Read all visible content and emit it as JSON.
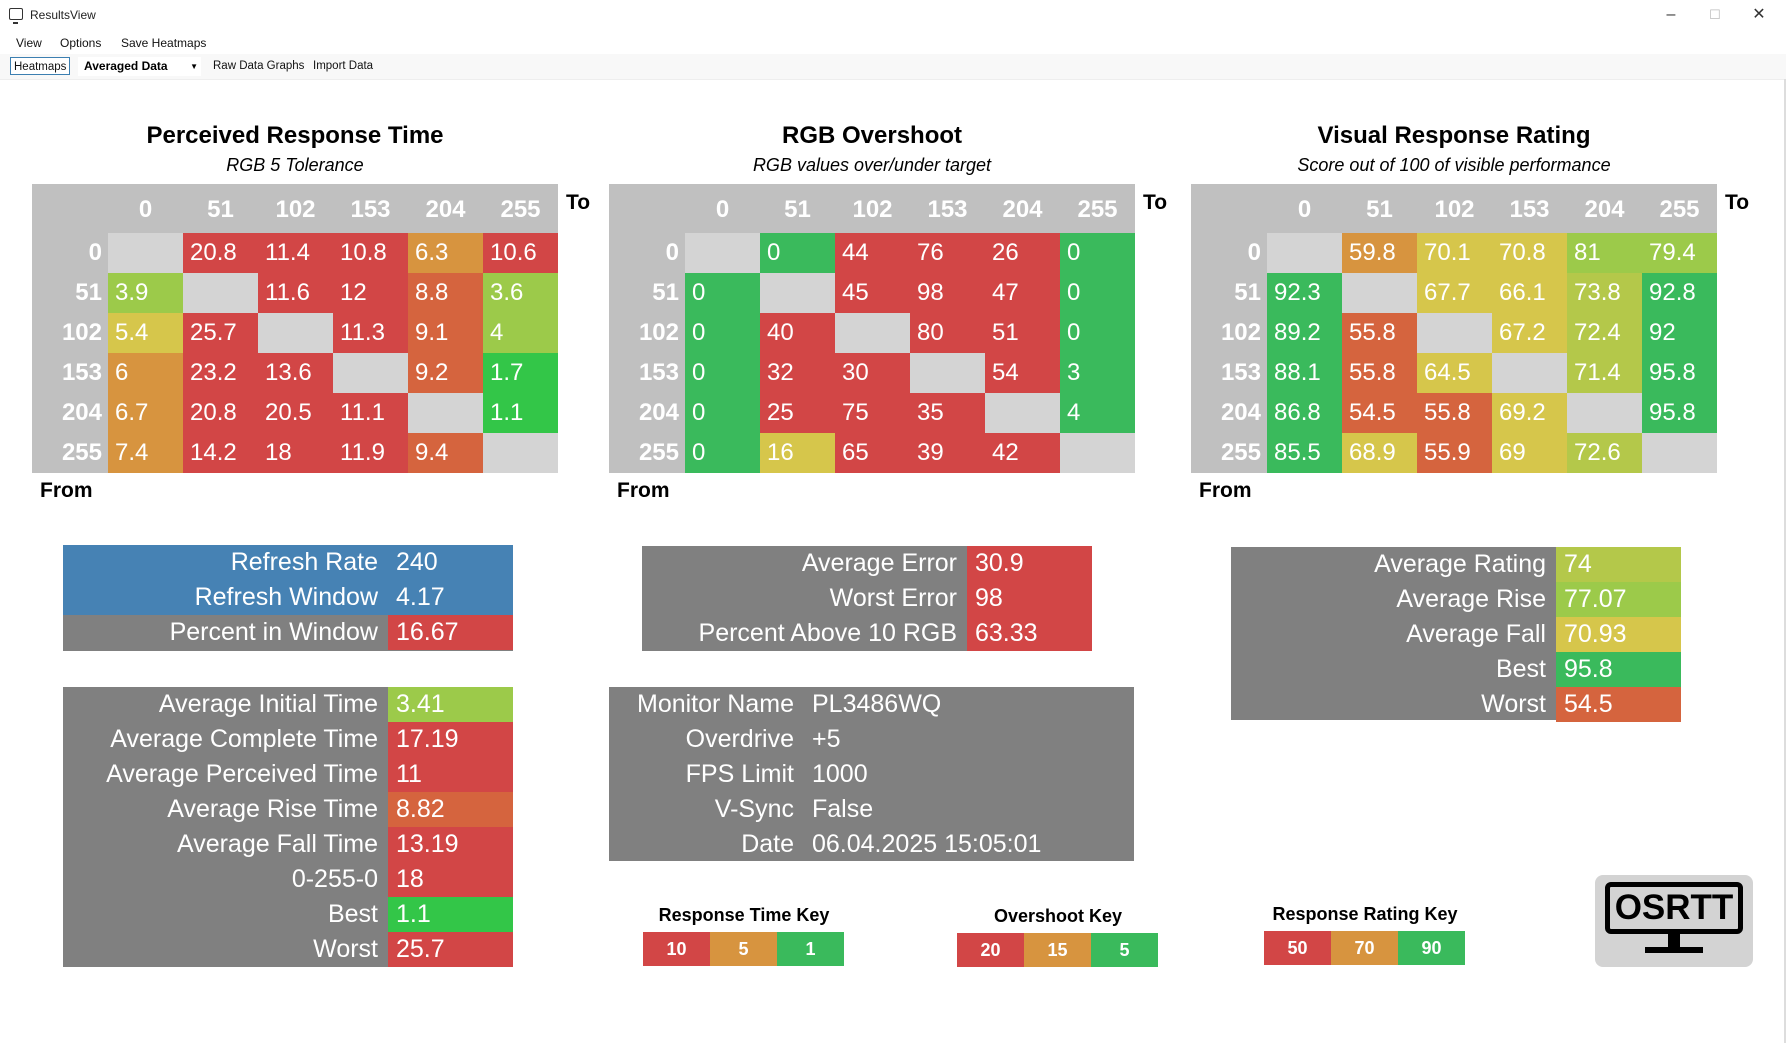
{
  "window": {
    "title": "ResultsView"
  },
  "menu": {
    "items": [
      "View",
      "Options",
      "Save Heatmaps"
    ]
  },
  "toolbar": {
    "heatmaps": "Heatmaps",
    "dropdown_value": "Averaged Data",
    "raw_graphs": "Raw Data Graphs",
    "import": "Import Data"
  },
  "colors": {
    "red": "#d24646",
    "orange_red": "#d5643e",
    "orange": "#d7943f",
    "yellow": "#d6c64b",
    "yellow_green": "#b4c84a",
    "lime": "#9cca4a",
    "green": "#3aba5c",
    "bright_green": "#33c648",
    "gray": "#808080",
    "header_gray": "#c0c0c0",
    "blue": "#4682b4"
  },
  "heatmaps": [
    {
      "title": "Perceived Response Time",
      "subtitle": "RGB 5 Tolerance",
      "cols": [
        "0",
        "51",
        "102",
        "153",
        "204",
        "255"
      ],
      "rows": [
        "0",
        "51",
        "102",
        "153",
        "204",
        "255"
      ],
      "to_label": "To",
      "from_label": "From",
      "cells": [
        [
          "",
          "20.8",
          "11.4",
          "10.8",
          "6.3",
          "10.6"
        ],
        [
          "3.9",
          "",
          "11.6",
          "12",
          "8.8",
          "3.6"
        ],
        [
          "5.4",
          "25.7",
          "",
          "11.3",
          "9.1",
          "4"
        ],
        [
          "6",
          "23.2",
          "13.6",
          "",
          "9.2",
          "1.7"
        ],
        [
          "6.7",
          "20.8",
          "20.5",
          "11.1",
          "",
          "1.1"
        ],
        [
          "7.4",
          "14.2",
          "18",
          "11.9",
          "9.4",
          ""
        ]
      ],
      "cell_colors": [
        [
          "",
          "red",
          "red",
          "red",
          "orange",
          "red"
        ],
        [
          "lime",
          "",
          "red",
          "red",
          "orange_red",
          "lime"
        ],
        [
          "yellow",
          "red",
          "",
          "red",
          "orange_red",
          "lime"
        ],
        [
          "orange",
          "red",
          "red",
          "",
          "orange_red",
          "bright_green"
        ],
        [
          "orange",
          "red",
          "red",
          "red",
          "",
          "bright_green"
        ],
        [
          "orange",
          "red",
          "red",
          "red",
          "orange_red",
          ""
        ]
      ]
    },
    {
      "title": "RGB Overshoot",
      "subtitle": "RGB values over/under target",
      "cols": [
        "0",
        "51",
        "102",
        "153",
        "204",
        "255"
      ],
      "rows": [
        "0",
        "51",
        "102",
        "153",
        "204",
        "255"
      ],
      "to_label": "To",
      "from_label": "From",
      "cells": [
        [
          "",
          "0",
          "44",
          "76",
          "26",
          "0"
        ],
        [
          "0",
          "",
          "45",
          "98",
          "47",
          "0"
        ],
        [
          "0",
          "40",
          "",
          "80",
          "51",
          "0"
        ],
        [
          "0",
          "32",
          "30",
          "",
          "54",
          "3"
        ],
        [
          "0",
          "25",
          "75",
          "35",
          "",
          "4"
        ],
        [
          "0",
          "16",
          "65",
          "39",
          "42",
          ""
        ]
      ],
      "cell_colors": [
        [
          "",
          "green",
          "red",
          "red",
          "red",
          "green"
        ],
        [
          "green",
          "",
          "red",
          "red",
          "red",
          "green"
        ],
        [
          "green",
          "red",
          "",
          "red",
          "red",
          "green"
        ],
        [
          "green",
          "red",
          "red",
          "",
          "red",
          "green"
        ],
        [
          "green",
          "red",
          "red",
          "red",
          "",
          "green"
        ],
        [
          "green",
          "yellow",
          "red",
          "red",
          "red",
          ""
        ]
      ]
    },
    {
      "title": "Visual Response Rating",
      "subtitle": "Score out of 100 of visible performance",
      "cols": [
        "0",
        "51",
        "102",
        "153",
        "204",
        "255"
      ],
      "rows": [
        "0",
        "51",
        "102",
        "153",
        "204",
        "255"
      ],
      "to_label": "To",
      "from_label": "From",
      "cells": [
        [
          "",
          "59.8",
          "70.1",
          "70.8",
          "81",
          "79.4"
        ],
        [
          "92.3",
          "",
          "67.7",
          "66.1",
          "73.8",
          "92.8"
        ],
        [
          "89.2",
          "55.8",
          "",
          "67.2",
          "72.4",
          "92"
        ],
        [
          "88.1",
          "55.8",
          "64.5",
          "",
          "71.4",
          "95.8"
        ],
        [
          "86.8",
          "54.5",
          "55.8",
          "69.2",
          "",
          "95.8"
        ],
        [
          "85.5",
          "68.9",
          "55.9",
          "69",
          "72.6",
          ""
        ]
      ],
      "cell_colors": [
        [
          "",
          "orange",
          "yellow",
          "yellow",
          "lime",
          "lime"
        ],
        [
          "green",
          "",
          "yellow",
          "yellow",
          "yellow_green",
          "green"
        ],
        [
          "green",
          "orange_red",
          "",
          "yellow",
          "yellow_green",
          "green"
        ],
        [
          "green",
          "orange_red",
          "yellow",
          "",
          "yellow_green",
          "green"
        ],
        [
          "green",
          "orange_red",
          "orange_red",
          "yellow",
          "",
          "green"
        ],
        [
          "green",
          "yellow",
          "orange_red",
          "yellow",
          "yellow_green",
          ""
        ]
      ]
    }
  ],
  "refresh": [
    {
      "label": "Refresh Rate",
      "value": "240",
      "color": "blue",
      "label_color": "blue"
    },
    {
      "label": "Refresh Window",
      "value": "4.17",
      "color": "blue",
      "label_color": "blue"
    },
    {
      "label": "Percent in Window",
      "value": "16.67",
      "color": "red",
      "label_color": "gray"
    }
  ],
  "timings": [
    {
      "label": "Average Initial Time",
      "value": "3.41",
      "color": "lime"
    },
    {
      "label": "Average Complete Time",
      "value": "17.19",
      "color": "red"
    },
    {
      "label": "Average Perceived Time",
      "value": "11",
      "color": "red"
    },
    {
      "label": "Average Rise Time",
      "value": "8.82",
      "color": "orange_red"
    },
    {
      "label": "Average Fall Time",
      "value": "13.19",
      "color": "red"
    },
    {
      "label": "0-255-0",
      "value": "18",
      "color": "red"
    },
    {
      "label": "Best",
      "value": "1.1",
      "color": "bright_green"
    },
    {
      "label": "Worst",
      "value": "25.7",
      "color": "red"
    }
  ],
  "overshoot_stats": [
    {
      "label": "Average Error",
      "value": "30.9",
      "color": "red"
    },
    {
      "label": "Worst Error",
      "value": "98",
      "color": "red"
    },
    {
      "label": "Percent Above 10 RGB",
      "value": "63.33",
      "color": "red"
    }
  ],
  "monitor": [
    {
      "label": "Monitor Name",
      "value": "PL3486WQ"
    },
    {
      "label": "Overdrive",
      "value": "+5"
    },
    {
      "label": "FPS Limit",
      "value": "1000"
    },
    {
      "label": "V-Sync",
      "value": "False"
    },
    {
      "label": "Date",
      "value": "06.04.2025 15:05:01"
    }
  ],
  "rating_stats": [
    {
      "label": "Average Rating",
      "value": "74",
      "color": "yellow_green"
    },
    {
      "label": "Average Rise",
      "value": "77.07",
      "color": "lime"
    },
    {
      "label": "Average Fall",
      "value": "70.93",
      "color": "yellow"
    },
    {
      "label": "Best",
      "value": "95.8",
      "color": "green"
    },
    {
      "label": "Worst",
      "value": "54.5",
      "color": "orange_red"
    }
  ],
  "keys": [
    {
      "title": "Response Time Key",
      "cells": [
        {
          "v": "10",
          "c": "red"
        },
        {
          "v": "5",
          "c": "orange"
        },
        {
          "v": "1",
          "c": "green"
        }
      ]
    },
    {
      "title": "Overshoot Key",
      "cells": [
        {
          "v": "20",
          "c": "red"
        },
        {
          "v": "15",
          "c": "orange"
        },
        {
          "v": "5",
          "c": "green"
        }
      ]
    },
    {
      "title": "Response Rating Key",
      "cells": [
        {
          "v": "50",
          "c": "red"
        },
        {
          "v": "70",
          "c": "orange"
        },
        {
          "v": "90",
          "c": "green"
        }
      ]
    }
  ],
  "logo": {
    "text": "OSRTT"
  }
}
